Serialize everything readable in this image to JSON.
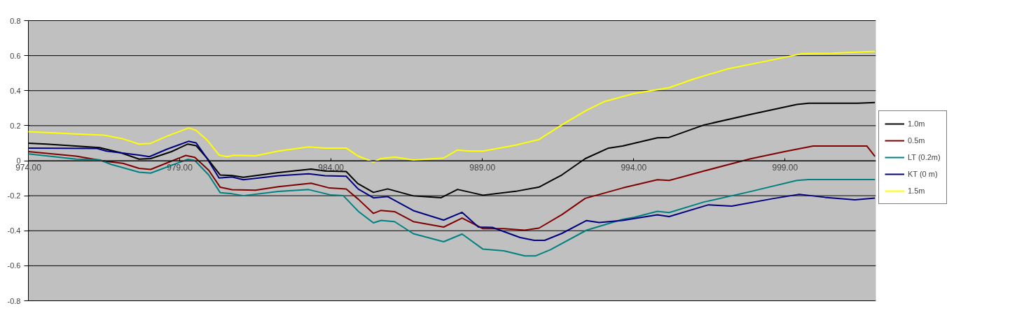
{
  "chart_data": {
    "type": "line",
    "xlim": [
      974,
      1002
    ],
    "ylim": [
      -0.8,
      0.8
    ],
    "xticks": [
      {
        "value": 974,
        "label": "974.00"
      },
      {
        "value": 979,
        "label": "979.00"
      },
      {
        "value": 984,
        "label": "984.00"
      },
      {
        "value": 989,
        "label": "989.00"
      },
      {
        "value": 994,
        "label": "994.00"
      },
      {
        "value": 999,
        "label": "999.00"
      }
    ],
    "yticks": [
      -0.8,
      -0.6,
      -0.4,
      -0.2,
      0,
      0.2,
      0.4,
      0.6,
      0.8
    ],
    "grid": "y",
    "legend": "right",
    "marker": "none",
    "line_style": "solid",
    "series": [
      {
        "name": "1.0m",
        "color": "#000000",
        "x": [
          974,
          974.6,
          976.35,
          977.04,
          977.66,
          978.04,
          978.73,
          979.27,
          979.54,
          979.88,
          980.34,
          980.73,
          981.1,
          982.26,
          983.34,
          983.8,
          984.5,
          984.88,
          985.4,
          985.87,
          986.72,
          987.64,
          988.18,
          989.02,
          990.1,
          990.87,
          991.63,
          992.4,
          993.17,
          993.63,
          994.78,
          995.17,
          996.32,
          997.86,
          999.39,
          999.78,
          1001.39,
          1001.97
        ],
        "values": [
          0.1,
          0.095,
          0.075,
          0.046,
          0.009,
          0.012,
          0.052,
          0.095,
          0.086,
          0.019,
          -0.082,
          -0.085,
          -0.095,
          -0.068,
          -0.048,
          -0.059,
          -0.062,
          -0.13,
          -0.181,
          -0.161,
          -0.201,
          -0.211,
          -0.164,
          -0.197,
          -0.175,
          -0.151,
          -0.081,
          0.012,
          0.072,
          0.084,
          0.131,
          0.133,
          0.204,
          0.264,
          0.321,
          0.328,
          0.328,
          0.332
        ]
      },
      {
        "name": "0.5m",
        "color": "#800000",
        "x": [
          974,
          975.58,
          976.58,
          977.12,
          977.66,
          978.04,
          979.2,
          979.5,
          979.96,
          980.34,
          980.73,
          981.5,
          982.26,
          983.34,
          983.95,
          984.5,
          984.9,
          985.4,
          985.65,
          986.1,
          986.72,
          987.72,
          988.33,
          989.02,
          989.71,
          990.4,
          990.87,
          991.63,
          992.4,
          993.63,
          994.78,
          995.17,
          996.32,
          997.86,
          999.01,
          999.93,
          1001.7,
          1001.97
        ],
        "values": [
          0.052,
          0.026,
          -0.004,
          -0.015,
          -0.044,
          -0.05,
          0.03,
          0.019,
          -0.055,
          -0.152,
          -0.166,
          -0.169,
          -0.149,
          -0.129,
          -0.156,
          -0.162,
          -0.22,
          -0.301,
          -0.284,
          -0.291,
          -0.348,
          -0.379,
          -0.328,
          -0.388,
          -0.388,
          -0.397,
          -0.385,
          -0.308,
          -0.215,
          -0.156,
          -0.109,
          -0.113,
          -0.059,
          0.011,
          0.053,
          0.084,
          0.084,
          0.024
        ]
      },
      {
        "name": "LT (0.2m)",
        "color": "#008080",
        "x": [
          974,
          975.58,
          976.35,
          976.73,
          977.66,
          978.04,
          979.27,
          979.5,
          979.96,
          980.34,
          980.73,
          981.1,
          982.26,
          983.26,
          984.0,
          984.4,
          984.9,
          985.4,
          985.65,
          986.1,
          986.72,
          987.72,
          988.33,
          989.02,
          989.71,
          990.4,
          990.75,
          991.25,
          992.44,
          993.63,
          994.02,
          994.78,
          995.17,
          996.32,
          997.86,
          999.39,
          999.78,
          1001.97
        ],
        "values": [
          0.039,
          0.009,
          0.005,
          -0.021,
          -0.066,
          -0.071,
          0.008,
          0.001,
          -0.082,
          -0.183,
          -0.189,
          -0.2,
          -0.176,
          -0.165,
          -0.196,
          -0.199,
          -0.289,
          -0.355,
          -0.341,
          -0.348,
          -0.417,
          -0.463,
          -0.419,
          -0.505,
          -0.515,
          -0.544,
          -0.544,
          -0.508,
          -0.397,
          -0.335,
          -0.323,
          -0.289,
          -0.296,
          -0.236,
          -0.176,
          -0.113,
          -0.108,
          -0.108
        ]
      },
      {
        "name": "KT (0 m)",
        "color": "#000080",
        "x": [
          974,
          976.27,
          976.58,
          977.66,
          978.0,
          978.58,
          979.3,
          979.54,
          979.88,
          980.3,
          980.73,
          981.1,
          982.26,
          983.26,
          983.8,
          984.5,
          984.9,
          985.4,
          985.87,
          986.72,
          987.72,
          988.33,
          988.87,
          989.33,
          990.25,
          990.71,
          991.06,
          991.63,
          992.44,
          992.86,
          993.63,
          994.78,
          995.17,
          996.47,
          997.24,
          998.62,
          999.47,
          1000.31,
          1001.31,
          1001.97
        ],
        "values": [
          0.072,
          0.07,
          0.055,
          0.032,
          0.023,
          0.066,
          0.111,
          0.102,
          0.019,
          -0.099,
          -0.093,
          -0.109,
          -0.086,
          -0.075,
          -0.086,
          -0.089,
          -0.162,
          -0.212,
          -0.205,
          -0.285,
          -0.339,
          -0.295,
          -0.379,
          -0.381,
          -0.439,
          -0.455,
          -0.455,
          -0.415,
          -0.342,
          -0.353,
          -0.341,
          -0.309,
          -0.319,
          -0.252,
          -0.259,
          -0.216,
          -0.192,
          -0.209,
          -0.223,
          -0.213
        ]
      },
      {
        "name": "1.5m",
        "color": "#ffff00",
        "x": [
          974,
          975.58,
          976.5,
          977.1,
          977.66,
          978.04,
          978.58,
          979.3,
          979.54,
          979.9,
          980.3,
          980.57,
          980.8,
          981.5,
          982.26,
          983.26,
          983.8,
          984.5,
          984.9,
          985.4,
          985.65,
          986.1,
          986.72,
          987.72,
          988.18,
          988.56,
          989.02,
          990.1,
          990.87,
          991.63,
          992.44,
          993.02,
          994.02,
          995.17,
          995.94,
          997.09,
          998.62,
          999.55,
          1000.54,
          1001.97
        ],
        "values": [
          0.166,
          0.153,
          0.146,
          0.126,
          0.095,
          0.099,
          0.14,
          0.187,
          0.173,
          0.119,
          0.032,
          0.023,
          0.031,
          0.028,
          0.055,
          0.079,
          0.072,
          0.072,
          0.026,
          -0.008,
          0.012,
          0.021,
          0.004,
          0.015,
          0.061,
          0.055,
          0.055,
          0.089,
          0.121,
          0.205,
          0.288,
          0.337,
          0.384,
          0.417,
          0.464,
          0.524,
          0.577,
          0.611,
          0.613,
          0.624
        ]
      }
    ]
  }
}
